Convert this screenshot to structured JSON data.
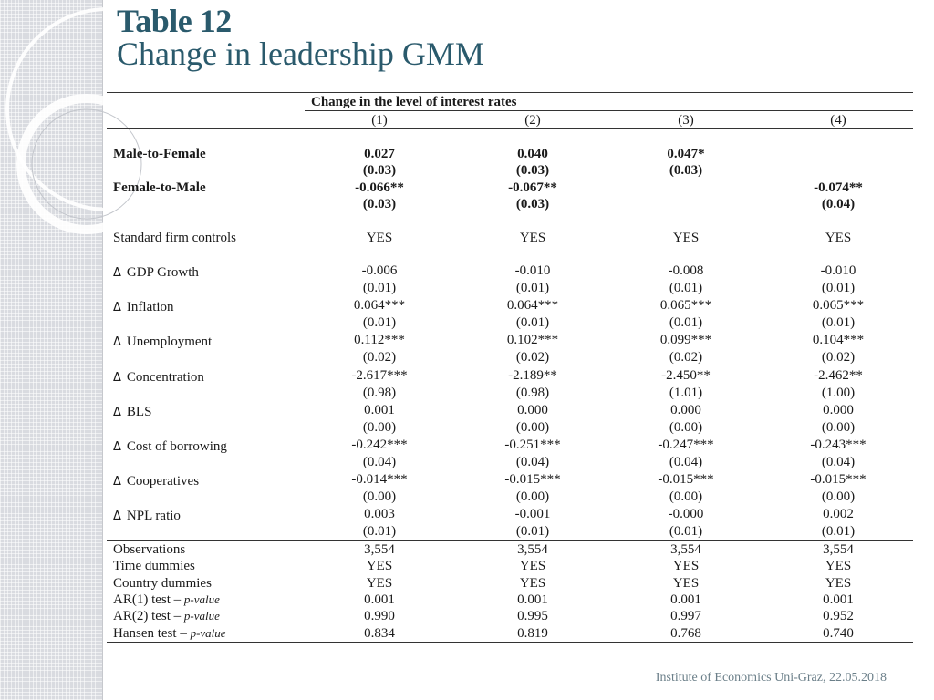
{
  "title": {
    "main": "Table 12",
    "sub": "Change in leadership GMM"
  },
  "table": {
    "header": "Change in the level of interest rates",
    "columns": [
      "(1)",
      "(2)",
      "(3)",
      "(4)"
    ],
    "leadership": {
      "mtf_label": "Male-to-Female",
      "mtf_coef": [
        "0.027",
        "0.040",
        "0.047*",
        ""
      ],
      "mtf_se": [
        "(0.03)",
        "(0.03)",
        "(0.03)",
        ""
      ],
      "ftm_label": "Female-to-Male",
      "ftm_coef": [
        "-0.066**",
        "-0.067**",
        "",
        "-0.074**"
      ],
      "ftm_se": [
        "(0.03)",
        "(0.03)",
        "",
        "(0.04)"
      ]
    },
    "controls": {
      "label": "Standard firm controls",
      "values": [
        "YES",
        "YES",
        "YES",
        "YES"
      ]
    },
    "delta_symbol": "Δ",
    "deltas": [
      {
        "label": "GDP Growth",
        "coef": [
          "-0.006",
          "-0.010",
          "-0.008",
          "-0.010"
        ],
        "se": [
          "(0.01)",
          "(0.01)",
          "(0.01)",
          "(0.01)"
        ]
      },
      {
        "label": "Inflation",
        "coef": [
          "0.064***",
          "0.064***",
          "0.065***",
          "0.065***"
        ],
        "se": [
          "(0.01)",
          "(0.01)",
          "(0.01)",
          "(0.01)"
        ]
      },
      {
        "label": "Unemployment",
        "coef": [
          "0.112***",
          "0.102***",
          "0.099***",
          "0.104***"
        ],
        "se": [
          "(0.02)",
          "(0.02)",
          "(0.02)",
          "(0.02)"
        ]
      },
      {
        "label": "Concentration",
        "coef": [
          "-2.617***",
          "-2.189**",
          "-2.450**",
          "-2.462**"
        ],
        "se": [
          "(0.98)",
          "(0.98)",
          "(1.01)",
          "(1.00)"
        ]
      },
      {
        "label": "BLS",
        "coef": [
          "0.001",
          "0.000",
          "0.000",
          "0.000"
        ],
        "se": [
          "(0.00)",
          "(0.00)",
          "(0.00)",
          "(0.00)"
        ]
      },
      {
        "label": "Cost of borrowing",
        "coef": [
          "-0.242***",
          "-0.251***",
          "-0.247***",
          "-0.243***"
        ],
        "se": [
          "(0.04)",
          "(0.04)",
          "(0.04)",
          "(0.04)"
        ]
      },
      {
        "label": "Cooperatives",
        "coef": [
          "-0.014***",
          "-0.015***",
          "-0.015***",
          "-0.015***"
        ],
        "se": [
          "(0.00)",
          "(0.00)",
          "(0.00)",
          "(0.00)"
        ]
      },
      {
        "label": "NPL ratio",
        "coef": [
          "0.003",
          "-0.001",
          "-0.000",
          "0.002"
        ],
        "se": [
          "(0.01)",
          "(0.01)",
          "(0.01)",
          "(0.01)"
        ]
      }
    ],
    "stats": [
      {
        "label": "Observations",
        "italic": "",
        "values": [
          "3,554",
          "3,554",
          "3,554",
          "3,554"
        ]
      },
      {
        "label": "Time dummies",
        "italic": "",
        "values": [
          "YES",
          "YES",
          "YES",
          "YES"
        ]
      },
      {
        "label": "Country dummies",
        "italic": "",
        "values": [
          "YES",
          "YES",
          "YES",
          "YES"
        ]
      },
      {
        "label": "AR(1) test – ",
        "italic": "p-value",
        "values": [
          "0.001",
          "0.001",
          "0.001",
          "0.001"
        ]
      },
      {
        "label": "AR(2) test – ",
        "italic": "p-value",
        "values": [
          "0.990",
          "0.995",
          "0.997",
          "0.952"
        ]
      },
      {
        "label": "Hansen test – ",
        "italic": "p-value",
        "values": [
          "0.834",
          "0.819",
          "0.768",
          "0.740"
        ]
      }
    ]
  },
  "footer": "Institute of Economics Uni-Graz, 22.05.2018"
}
